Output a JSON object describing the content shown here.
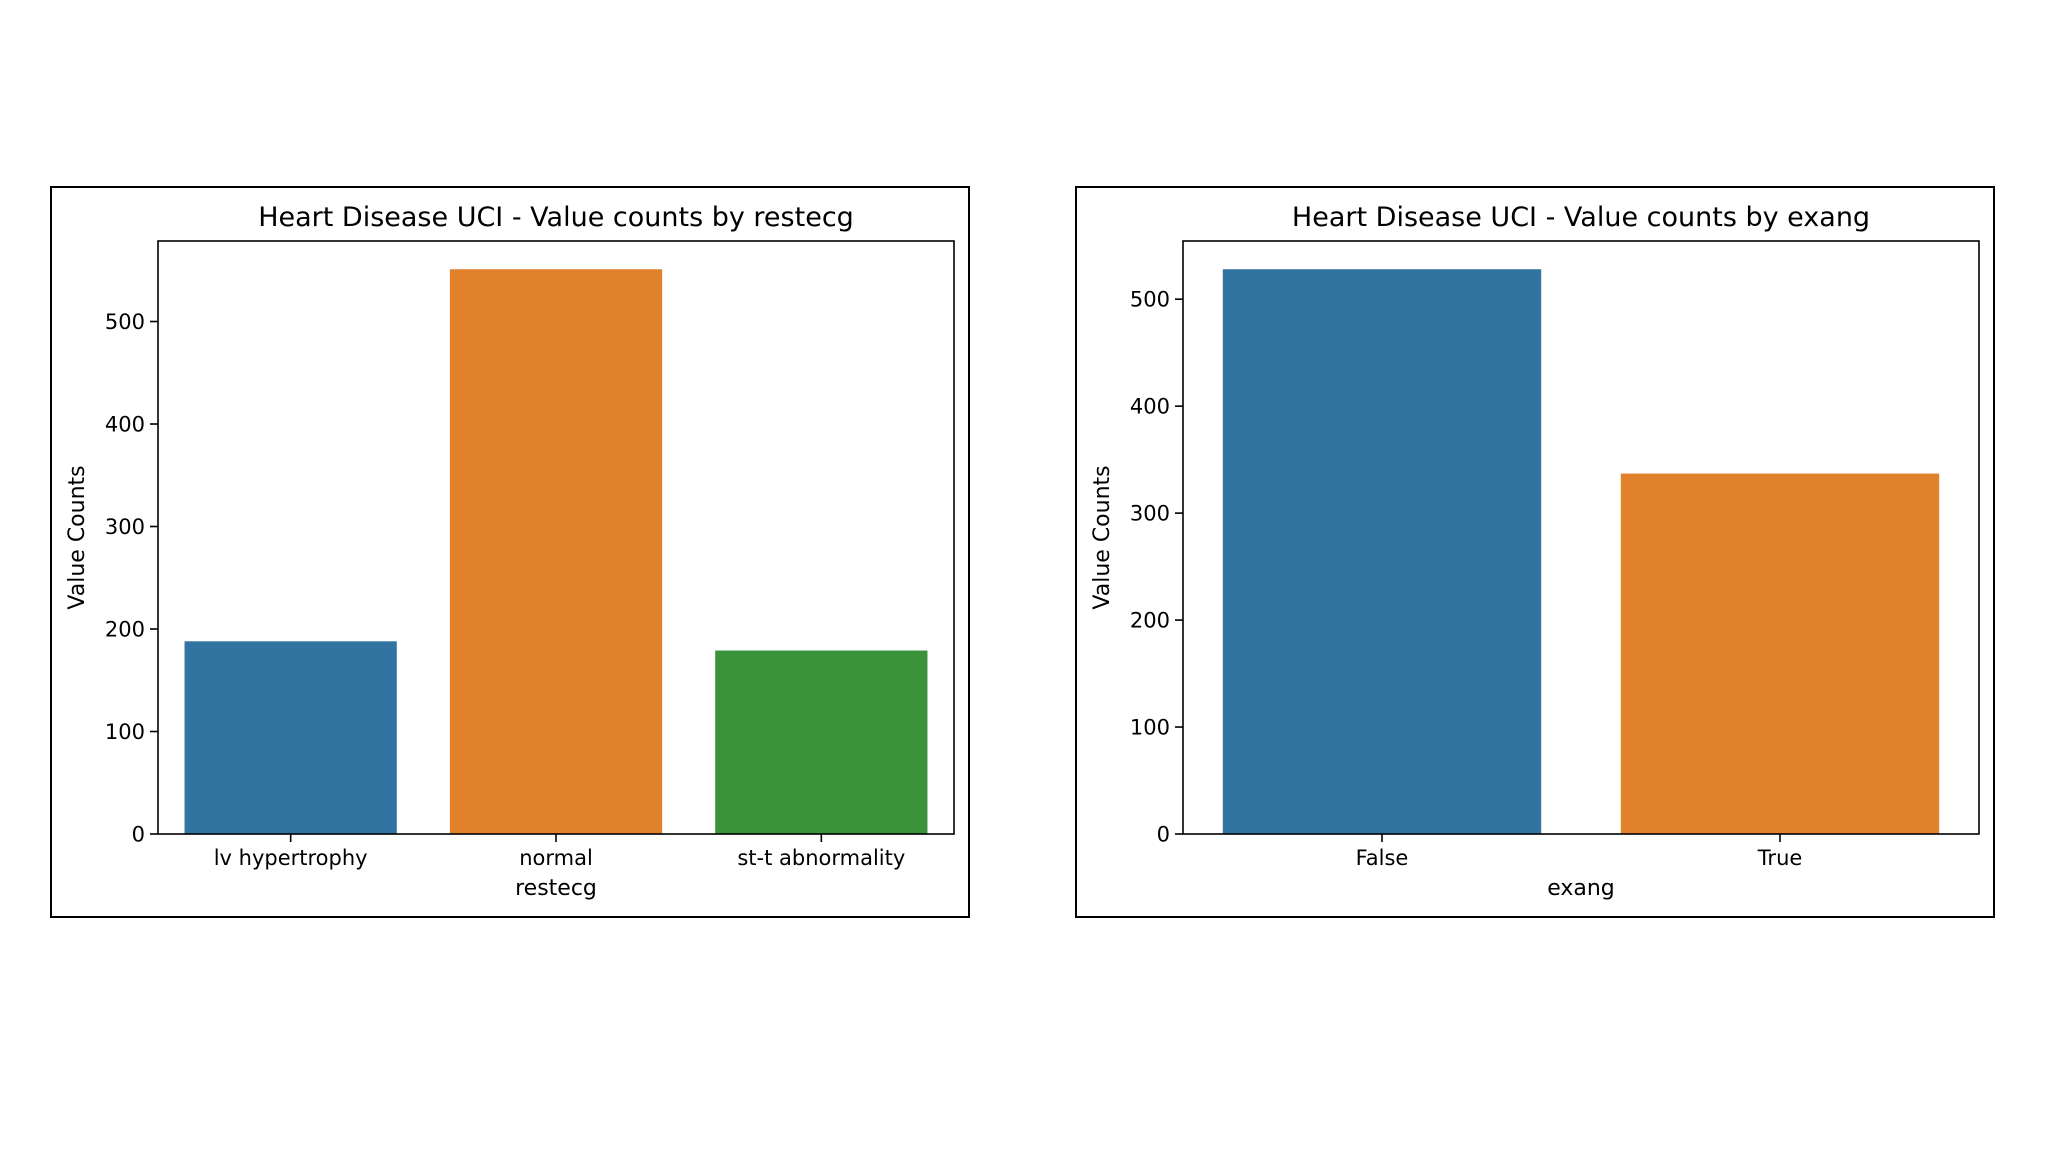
{
  "chart_data": [
    {
      "type": "bar",
      "title": "Heart Disease UCI - Value counts by restecg",
      "categories": [
        "lv hypertrophy",
        "normal",
        "st-t abnormality"
      ],
      "values": [
        188,
        551,
        179
      ],
      "colors": [
        "#3274a1",
        "#e1812c",
        "#3a923a"
      ],
      "xlabel": "restecg",
      "ylabel": "Value Counts",
      "ylim": [
        0,
        578.55
      ],
      "yticks": [
        0,
        100,
        200,
        300,
        400,
        500
      ],
      "grid": false
    },
    {
      "type": "bar",
      "title": "Heart Disease UCI - Value counts by exang",
      "categories": [
        "False",
        "True"
      ],
      "values": [
        528,
        337
      ],
      "colors": [
        "#3274a1",
        "#e1812c"
      ],
      "xlabel": "exang",
      "ylabel": "Value Counts",
      "ylim": [
        0,
        554.4
      ],
      "yticks": [
        0,
        100,
        200,
        300,
        400,
        500
      ],
      "grid": false
    }
  ]
}
